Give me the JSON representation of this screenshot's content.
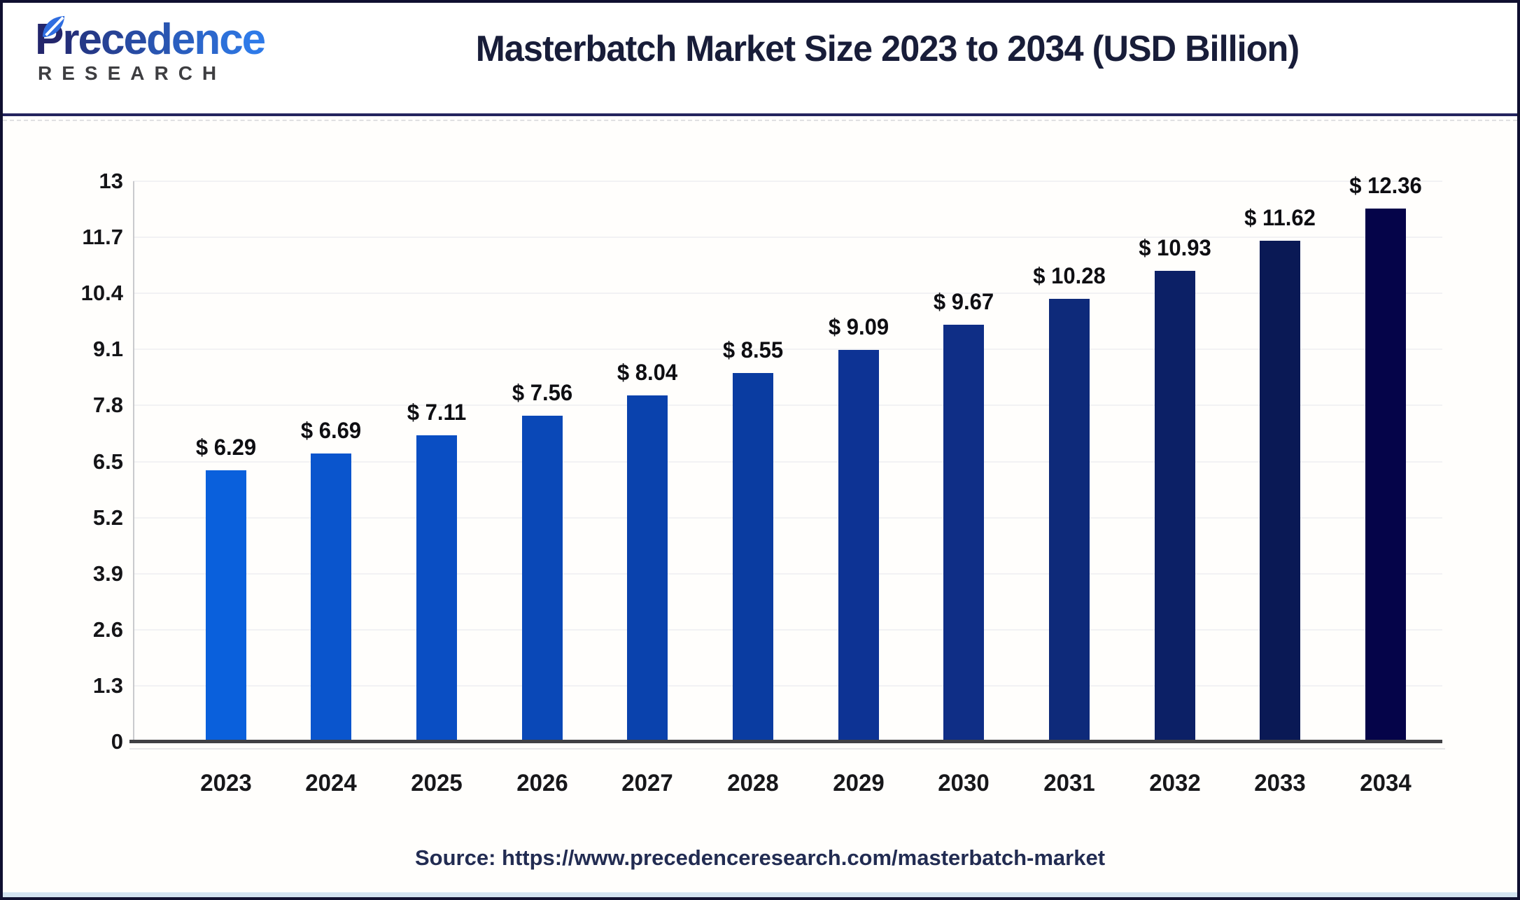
{
  "header": {
    "logo": {
      "word": "Precedence",
      "subword": "RESEARCH",
      "gradient_start": "#23266c",
      "gradient_end": "#2e7ae8",
      "leaf_color": "#2f6de0"
    },
    "title": "Masterbatch Market Size 2023 to 2034 (USD Billion)"
  },
  "chart_data": {
    "type": "bar",
    "title": "Masterbatch Market Size 2023 to 2034 (USD Billion)",
    "unit": "USD Billion",
    "categories": [
      "2023",
      "2024",
      "2025",
      "2026",
      "2027",
      "2028",
      "2029",
      "2030",
      "2031",
      "2032",
      "2033",
      "2034"
    ],
    "values": [
      6.29,
      6.69,
      7.11,
      7.56,
      8.04,
      8.55,
      9.09,
      9.67,
      10.28,
      10.93,
      11.62,
      12.36
    ],
    "value_labels": [
      "$ 6.29",
      "$ 6.69",
      "$ 7.11",
      "$ 7.56",
      "$ 8.04",
      "$ 8.55",
      "$ 9.09",
      "$ 9.67",
      "$ 10.28",
      "$ 10.93",
      "$ 11.62",
      "$ 12.36"
    ],
    "bar_colors": [
      "#0a60dc",
      "#0a55cd",
      "#0a4ec3",
      "#0a48b7",
      "#0a42ad",
      "#0a3ca1",
      "#0d3394",
      "#0f2e86",
      "#0e2a7a",
      "#0c2066",
      "#0a1955",
      "#050449"
    ],
    "y_ticks": [
      0,
      1.3,
      2.6,
      3.9,
      5.2,
      6.5,
      7.8,
      9.1,
      10.4,
      11.7,
      13
    ],
    "y_tick_labels": [
      "0",
      "1.3",
      "2.6",
      "3.9",
      "5.2",
      "6.5",
      "7.8",
      "9.1",
      "10.4",
      "11.7",
      "13"
    ],
    "ylim": [
      0,
      13
    ],
    "xlabel": "",
    "ylabel": "",
    "grid": "subtle-horizontal",
    "legend": "none",
    "axis_color": "#404044",
    "gridline_color": "#f2f2f4"
  },
  "footer": {
    "source_label": "Source:",
    "source_url": "https://www.precedenceresearch.com/masterbatch-market"
  }
}
